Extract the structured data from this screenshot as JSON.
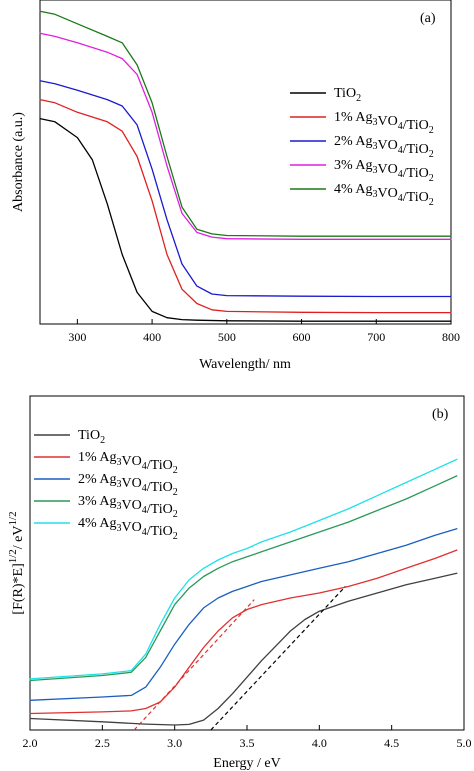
{
  "chart_data": [
    {
      "panel": "(a)",
      "type": "line",
      "xlabel": "Wavelength/ nm",
      "ylabel": "Absorbance (a.u.)",
      "xlim": [
        250,
        800
      ],
      "ylim": [
        0,
        1
      ],
      "xticks": [
        300,
        400,
        500,
        600,
        700,
        800
      ],
      "grid": false,
      "legend_position": "right",
      "series": [
        {
          "name": "TiO2",
          "color": "#000000",
          "x": [
            250,
            270,
            300,
            320,
            340,
            360,
            380,
            400,
            420,
            440,
            460,
            500,
            600,
            700,
            800
          ],
          "y": [
            0.65,
            0.64,
            0.59,
            0.52,
            0.38,
            0.22,
            0.1,
            0.04,
            0.02,
            0.014,
            0.012,
            0.01,
            0.009,
            0.009,
            0.009
          ]
        },
        {
          "name": "1% Ag3VO4/TiO2",
          "color": "#e02020",
          "x": [
            250,
            270,
            300,
            340,
            360,
            380,
            400,
            420,
            440,
            460,
            480,
            500,
            600,
            700,
            800
          ],
          "y": [
            0.71,
            0.7,
            0.67,
            0.64,
            0.61,
            0.53,
            0.39,
            0.22,
            0.11,
            0.065,
            0.045,
            0.04,
            0.037,
            0.036,
            0.036
          ]
        },
        {
          "name": "2% Ag3VO4/TiO2",
          "color": "#1a1ad0",
          "x": [
            250,
            270,
            300,
            340,
            360,
            380,
            400,
            420,
            440,
            460,
            480,
            500,
            600,
            700,
            800
          ],
          "y": [
            0.77,
            0.76,
            0.74,
            0.71,
            0.69,
            0.63,
            0.49,
            0.33,
            0.19,
            0.12,
            0.095,
            0.09,
            0.088,
            0.087,
            0.087
          ]
        },
        {
          "name": "3% Ag3VO4/TiO2",
          "color": "#e020e0",
          "x": [
            250,
            270,
            300,
            340,
            360,
            380,
            400,
            420,
            440,
            460,
            480,
            500,
            600,
            700,
            800
          ],
          "y": [
            0.92,
            0.91,
            0.89,
            0.86,
            0.84,
            0.79,
            0.67,
            0.5,
            0.35,
            0.29,
            0.275,
            0.27,
            0.268,
            0.268,
            0.268
          ]
        },
        {
          "name": "4% Ag3VO4/TiO2",
          "color": "#1a7a1a",
          "x": [
            250,
            270,
            300,
            340,
            360,
            380,
            400,
            420,
            440,
            460,
            480,
            500,
            600,
            700,
            800
          ],
          "y": [
            0.99,
            0.98,
            0.95,
            0.91,
            0.89,
            0.82,
            0.7,
            0.53,
            0.37,
            0.3,
            0.285,
            0.28,
            0.278,
            0.278,
            0.278
          ]
        }
      ]
    },
    {
      "panel": "(b)",
      "type": "line",
      "xlabel": "Energy / eV",
      "ylabel": "[F(R)*E]1/2/ eV1/2",
      "xlim": [
        2.0,
        5.0
      ],
      "ylim": [
        0,
        1
      ],
      "xticks": [
        2.0,
        2.5,
        3.0,
        3.5,
        4.0,
        4.5,
        5.0
      ],
      "grid": false,
      "legend_position": "top-left",
      "series": [
        {
          "name": "TiO2",
          "color": "#404040",
          "x": [
            2.0,
            2.5,
            2.8,
            3.0,
            3.1,
            3.2,
            3.3,
            3.4,
            3.5,
            3.6,
            3.7,
            3.8,
            3.9,
            4.0,
            4.2,
            4.4,
            4.6,
            4.8,
            4.95
          ],
          "y": [
            0.035,
            0.025,
            0.018,
            0.015,
            0.017,
            0.03,
            0.065,
            0.11,
            0.16,
            0.21,
            0.255,
            0.3,
            0.335,
            0.36,
            0.39,
            0.415,
            0.44,
            0.46,
            0.475
          ]
        },
        {
          "name": "1% Ag3VO4/TiO2",
          "color": "#e03030",
          "x": [
            2.0,
            2.5,
            2.7,
            2.8,
            2.9,
            3.0,
            3.1,
            3.2,
            3.3,
            3.4,
            3.5,
            3.6,
            3.8,
            4.0,
            4.2,
            4.4,
            4.6,
            4.8,
            4.95
          ],
          "y": [
            0.05,
            0.055,
            0.058,
            0.065,
            0.085,
            0.13,
            0.19,
            0.25,
            0.3,
            0.34,
            0.365,
            0.38,
            0.4,
            0.415,
            0.435,
            0.46,
            0.49,
            0.52,
            0.545
          ]
        },
        {
          "name": "2% Ag3VO4/TiO2",
          "color": "#1a5fc0",
          "x": [
            2.0,
            2.5,
            2.7,
            2.8,
            2.9,
            3.0,
            3.1,
            3.2,
            3.3,
            3.4,
            3.5,
            3.6,
            3.8,
            4.0,
            4.2,
            4.4,
            4.6,
            4.8,
            4.95
          ],
          "y": [
            0.09,
            0.1,
            0.105,
            0.13,
            0.19,
            0.26,
            0.32,
            0.37,
            0.4,
            0.42,
            0.435,
            0.45,
            0.47,
            0.49,
            0.51,
            0.535,
            0.56,
            0.59,
            0.61
          ]
        },
        {
          "name": "3% Ag3VO4/TiO2",
          "color": "#2a9a5a",
          "x": [
            2.0,
            2.5,
            2.7,
            2.8,
            2.9,
            3.0,
            3.1,
            3.2,
            3.3,
            3.4,
            3.5,
            3.6,
            3.8,
            4.0,
            4.2,
            4.4,
            4.6,
            4.8,
            4.95
          ],
          "y": [
            0.15,
            0.165,
            0.175,
            0.22,
            0.3,
            0.38,
            0.43,
            0.465,
            0.49,
            0.51,
            0.525,
            0.54,
            0.57,
            0.6,
            0.63,
            0.665,
            0.7,
            0.74,
            0.77
          ]
        },
        {
          "name": "4% Ag3VO4/TiO2",
          "color": "#20e0e8",
          "x": [
            2.0,
            2.5,
            2.7,
            2.8,
            2.9,
            3.0,
            3.1,
            3.2,
            3.3,
            3.4,
            3.5,
            3.6,
            3.8,
            4.0,
            4.2,
            4.4,
            4.6,
            4.8,
            4.95
          ],
          "y": [
            0.155,
            0.17,
            0.18,
            0.23,
            0.32,
            0.4,
            0.455,
            0.49,
            0.515,
            0.535,
            0.55,
            0.57,
            0.6,
            0.635,
            0.67,
            0.71,
            0.75,
            0.79,
            0.82
          ]
        }
      ],
      "fit_lines": [
        {
          "color": "#e03030",
          "x": [
            2.72,
            3.55
          ],
          "y": [
            0.0,
            0.395
          ]
        },
        {
          "color": "#000000",
          "x": [
            3.25,
            4.18
          ],
          "y": [
            0.0,
            0.435
          ]
        }
      ]
    }
  ]
}
